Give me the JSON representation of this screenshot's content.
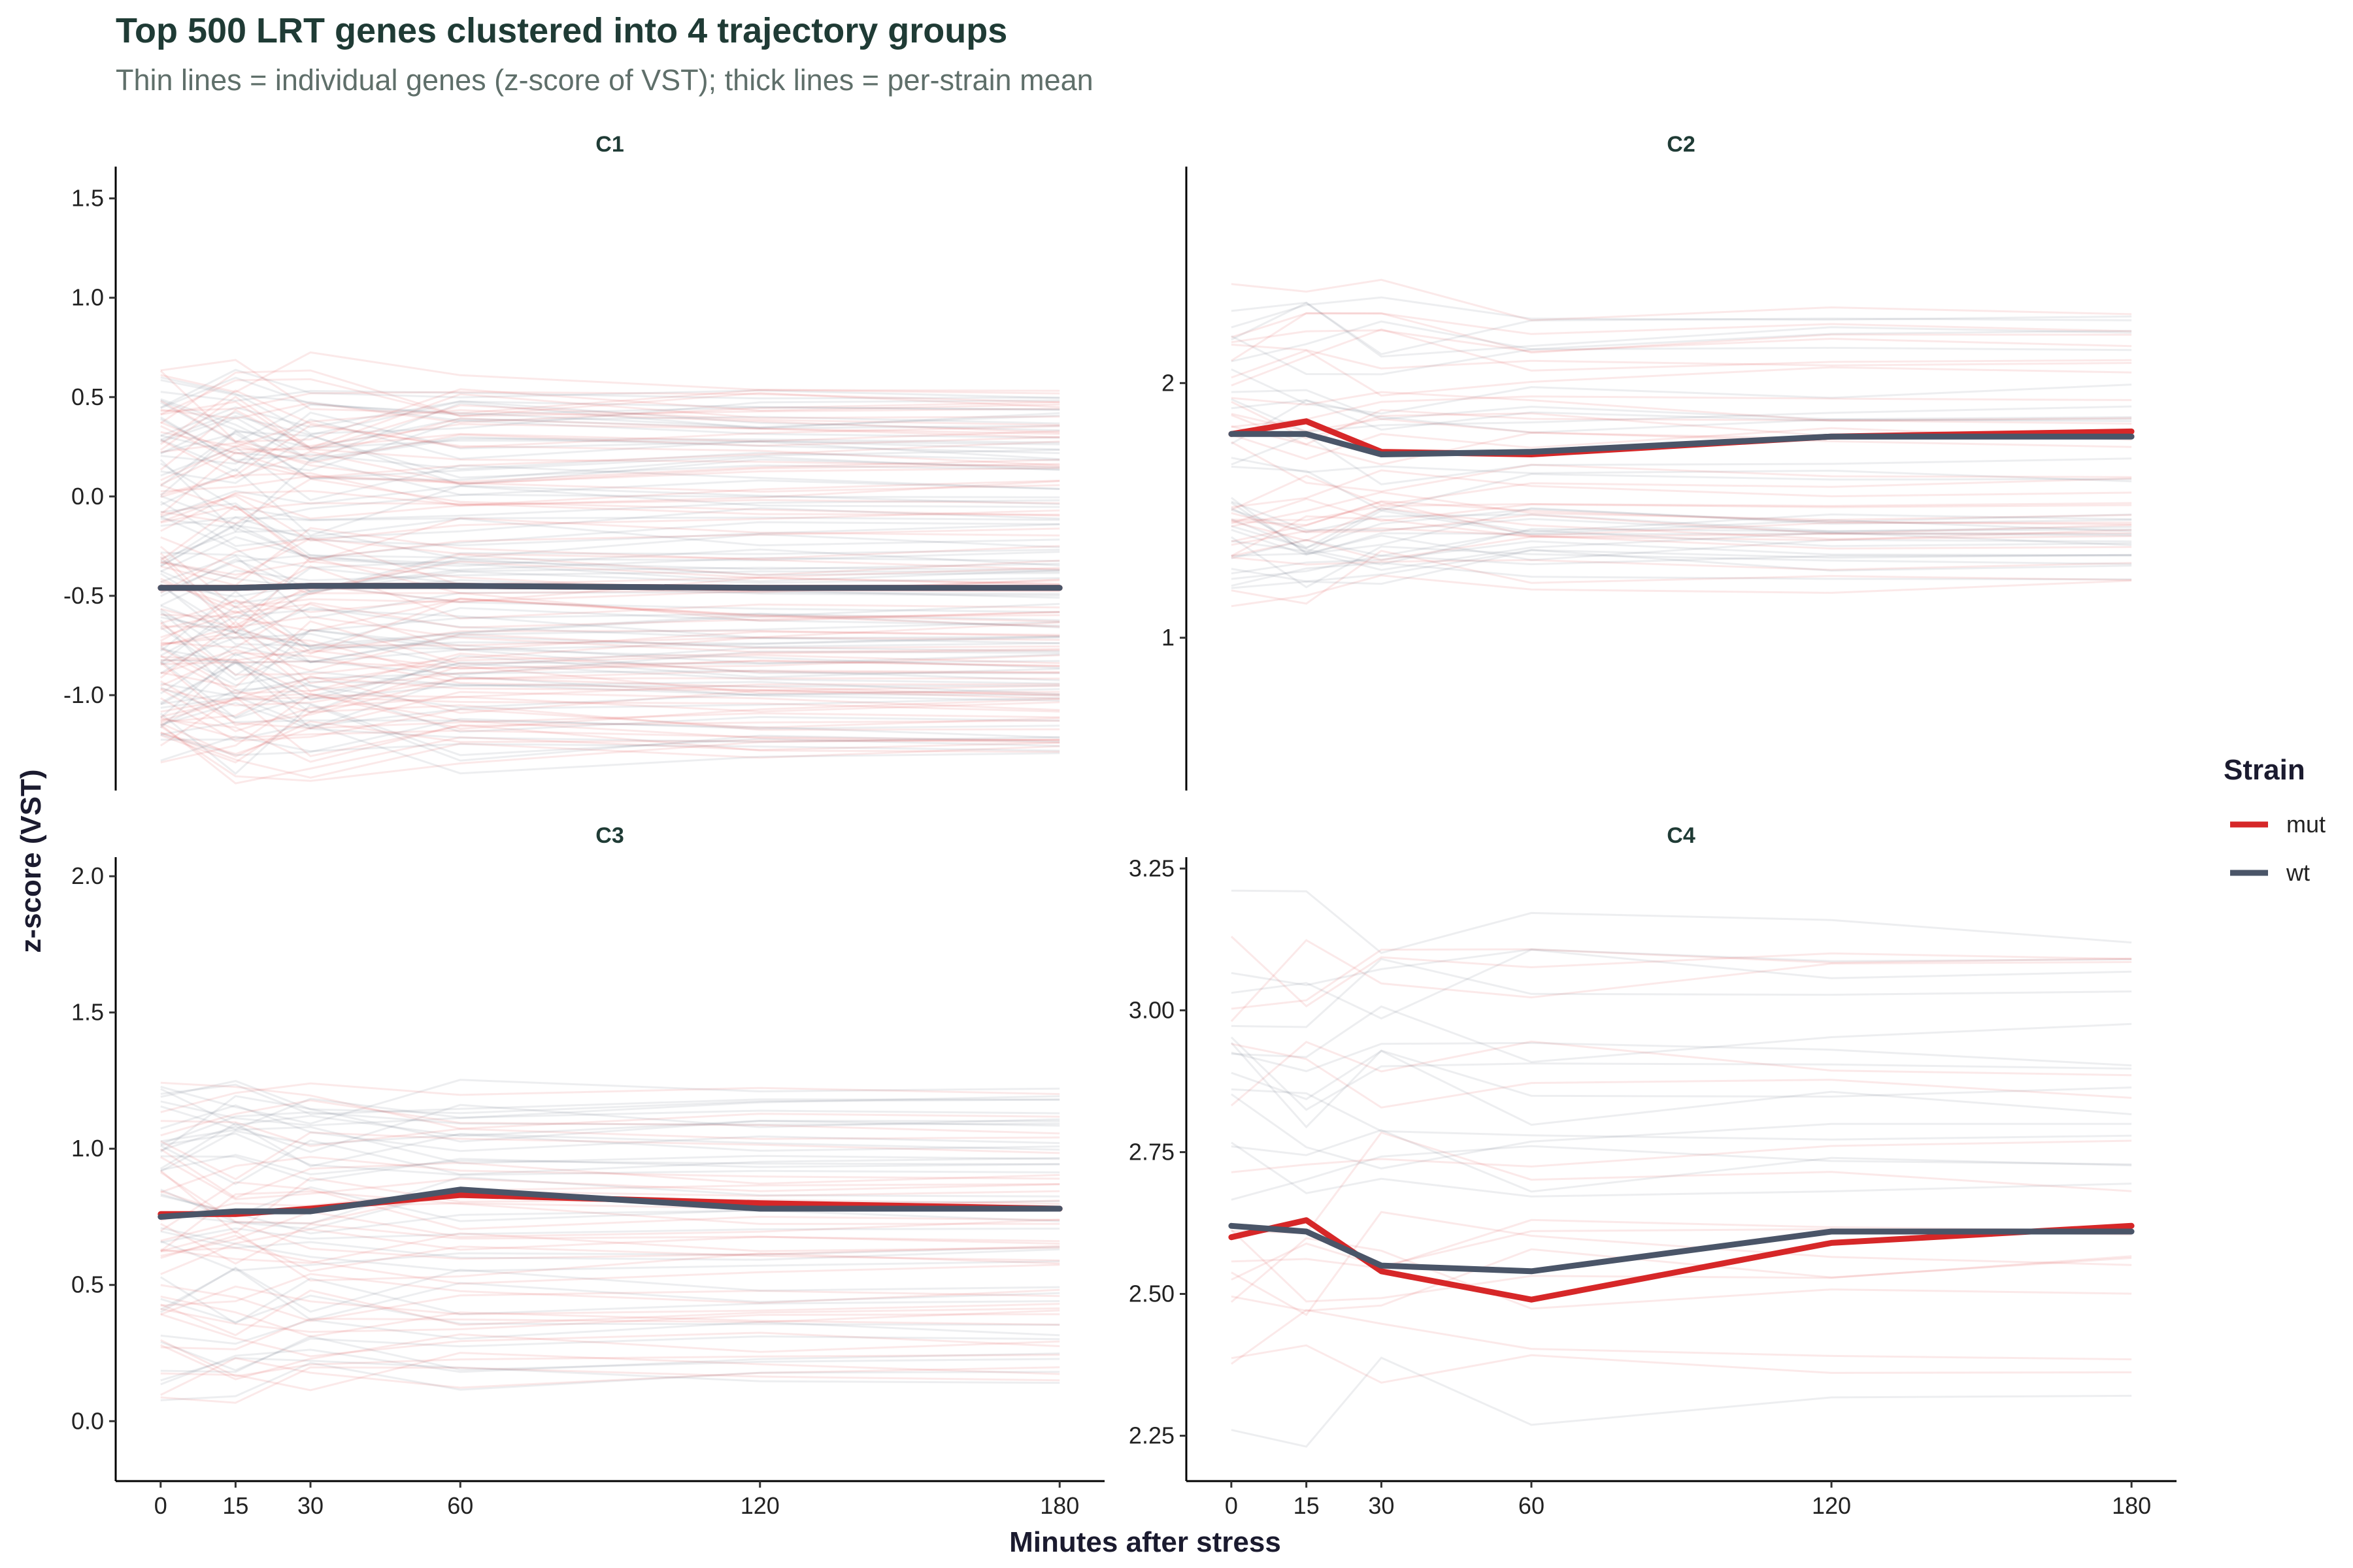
{
  "chart_data": {
    "type": "line",
    "title": "Top 500 LRT genes clustered into 4 trajectory groups",
    "subtitle": "Thin lines = individual genes (z-score of VST); thick lines = per-strain mean",
    "xlabel": "Minutes after stress",
    "ylabel": "z-score (VST)",
    "x": [
      0,
      15,
      30,
      60,
      120,
      180
    ],
    "xlim": [
      -9,
      189
    ],
    "legend": {
      "title": "Strain",
      "position": "right",
      "entries": [
        {
          "label": "mut",
          "color": "#d62728"
        },
        {
          "label": "wt",
          "color": "#4a5568"
        }
      ]
    },
    "grid": false,
    "facets": [
      {
        "label": "C1",
        "ylim": [
          -1.48,
          1.66
        ],
        "yticks": [
          -1.0,
          -0.5,
          0.0,
          0.5,
          1.0,
          1.5
        ],
        "ytick_labels": [
          "-1.0",
          "-0.5",
          "0.0",
          "0.5",
          "1.0",
          "1.5"
        ],
        "gene_band": {
          "low": -1.3,
          "high": 0.55,
          "count": 160
        },
        "series": [
          {
            "name": "mut",
            "values": [
              -0.46,
              -0.46,
              -0.45,
              -0.45,
              -0.46,
              -0.46
            ]
          },
          {
            "name": "wt",
            "values": [
              -0.46,
              -0.46,
              -0.45,
              -0.45,
              -0.46,
              -0.46
            ]
          }
        ]
      },
      {
        "label": "C2",
        "ylim": [
          0.4,
          2.85
        ],
        "yticks": [
          1,
          2
        ],
        "ytick_labels": [
          "1",
          "2"
        ],
        "gene_band": {
          "low": 1.2,
          "high": 2.3,
          "count": 60
        },
        "series": [
          {
            "name": "mut",
            "values": [
              1.8,
              1.85,
              1.73,
              1.72,
              1.79,
              1.81
            ]
          },
          {
            "name": "wt",
            "values": [
              1.8,
              1.8,
              1.72,
              1.73,
              1.79,
              1.79
            ]
          }
        ]
      },
      {
        "label": "C3",
        "ylim": [
          -0.22,
          2.07
        ],
        "yticks": [
          0.0,
          0.5,
          1.0,
          1.5,
          2.0
        ],
        "ytick_labels": [
          "0.0",
          "0.5",
          "1.0",
          "1.5",
          "2.0"
        ],
        "gene_band": {
          "low": 0.15,
          "high": 1.25,
          "count": 70
        },
        "series": [
          {
            "name": "mut",
            "values": [
              0.76,
              0.76,
              0.78,
              0.83,
              0.8,
              0.78
            ]
          },
          {
            "name": "wt",
            "values": [
              0.75,
              0.77,
              0.77,
              0.85,
              0.78,
              0.78
            ]
          }
        ]
      },
      {
        "label": "C4",
        "ylim": [
          2.17,
          3.27
        ],
        "yticks": [
          2.25,
          2.5,
          2.75,
          3.0,
          3.25
        ],
        "ytick_labels": [
          "2.25",
          "2.50",
          "2.75",
          "3.00",
          "3.25"
        ],
        "gene_band": {
          "low": 2.3,
          "high": 3.15,
          "count": 30
        },
        "series": [
          {
            "name": "mut",
            "values": [
              2.6,
              2.63,
              2.54,
              2.49,
              2.59,
              2.62
            ]
          },
          {
            "name": "wt",
            "values": [
              2.62,
              2.61,
              2.55,
              2.54,
              2.61,
              2.61
            ]
          }
        ]
      }
    ]
  }
}
